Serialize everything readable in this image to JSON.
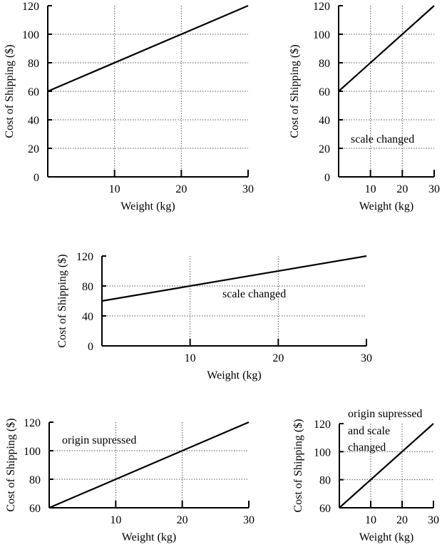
{
  "chart_data": [
    {
      "id": "chart-1",
      "type": "line",
      "xlabel": "Weight (kg)",
      "ylabel": "Cost of Shipping ($)",
      "xlim": [
        0,
        30
      ],
      "ylim": [
        0,
        120
      ],
      "x_ticks": [
        10,
        20,
        30
      ],
      "y_ticks": [
        0,
        20,
        40,
        60,
        80,
        100,
        120
      ],
      "grid": true,
      "annotations": [],
      "series": [
        {
          "x": [
            0,
            30
          ],
          "y": [
            60,
            120
          ]
        }
      ]
    },
    {
      "id": "chart-2",
      "type": "line",
      "xlabel": "Weight (kg)",
      "ylabel": "Cost of Shipping ($)",
      "xlim": [
        0,
        30
      ],
      "ylim": [
        0,
        120
      ],
      "x_ticks": [
        10,
        20,
        30
      ],
      "y_ticks": [
        0,
        20,
        40,
        60,
        80,
        100,
        120
      ],
      "grid": true,
      "annotations": [
        "scale changed"
      ],
      "series": [
        {
          "x": [
            0,
            30
          ],
          "y": [
            60,
            120
          ]
        }
      ]
    },
    {
      "id": "chart-3",
      "type": "line",
      "xlabel": "Weight (kg)",
      "ylabel": "Cost of Shipping ($)",
      "xlim": [
        0,
        30
      ],
      "ylim": [
        0,
        120
      ],
      "x_ticks": [
        10,
        20,
        30
      ],
      "y_ticks": [
        0,
        40,
        80,
        120
      ],
      "grid": true,
      "annotations": [
        "scale changed"
      ],
      "series": [
        {
          "x": [
            0,
            30
          ],
          "y": [
            60,
            120
          ]
        }
      ]
    },
    {
      "id": "chart-4",
      "type": "line",
      "xlabel": "Weight (kg)",
      "ylabel": "Cost of Shipping ($)",
      "xlim": [
        0,
        30
      ],
      "ylim": [
        60,
        120
      ],
      "x_ticks": [
        10,
        20,
        30
      ],
      "y_ticks": [
        60,
        80,
        100,
        120
      ],
      "grid": true,
      "annotations": [
        "origin supressed"
      ],
      "series": [
        {
          "x": [
            0,
            30
          ],
          "y": [
            60,
            120
          ]
        }
      ]
    },
    {
      "id": "chart-5",
      "type": "line",
      "xlabel": "Weight (kg)",
      "ylabel": "Cost of Shipping ($)",
      "xlim": [
        0,
        30
      ],
      "ylim": [
        60,
        120
      ],
      "x_ticks": [
        10,
        20,
        30
      ],
      "y_ticks": [
        60,
        80,
        100,
        120
      ],
      "grid": true,
      "annotations": [
        "origin supressed",
        "and scale",
        "changed"
      ],
      "series": [
        {
          "x": [
            0,
            30
          ],
          "y": [
            60,
            120
          ]
        }
      ]
    }
  ]
}
